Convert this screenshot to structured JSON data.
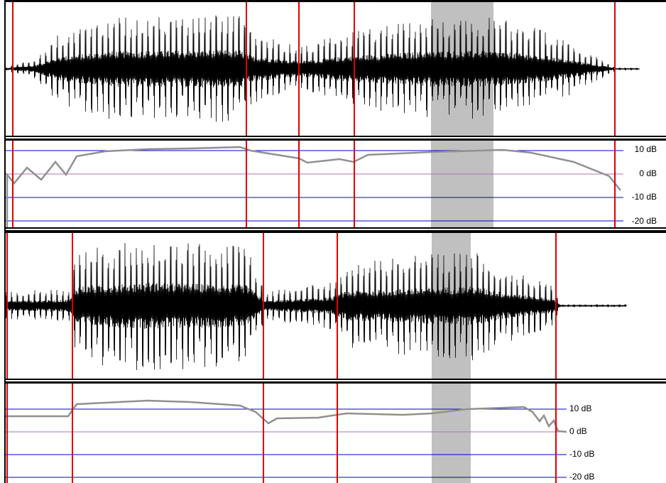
{
  "colors": {
    "marker": "#e00000",
    "selection": "#c0c0c0",
    "waveform": "#000000",
    "zero_axis": "#008000",
    "grid_major": "#0000d0",
    "grid_zero": "#b070b0",
    "level_curve": "#909090"
  },
  "tracks": [
    {
      "waveform": {
        "end_fraction": 0.96
      },
      "level": {
        "db_labels": [
          "10 dB",
          "0 dB",
          "-10 dB",
          "-20 dB"
        ],
        "db_values": [
          10,
          0,
          -10,
          -20
        ]
      }
    },
    {
      "waveform": {
        "end_fraction": 0.94
      },
      "level": {
        "db_labels": [
          "10 dB",
          "0 dB",
          "-10 dB",
          "-20 dB"
        ],
        "db_values": [
          10,
          0,
          -10,
          -20
        ]
      }
    }
  ]
}
